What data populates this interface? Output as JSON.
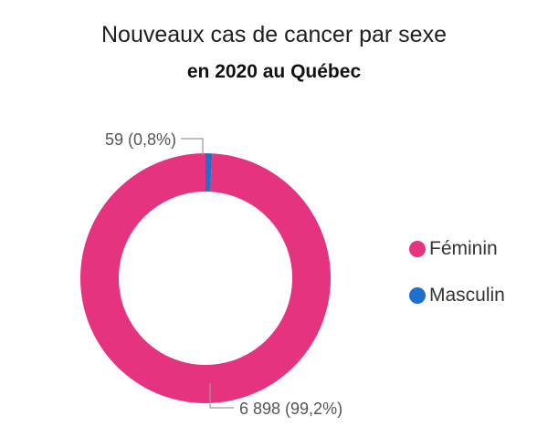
{
  "chart_data": {
    "type": "pie",
    "title": "Nouveaux cas de cancer par sexe",
    "subtitle": "en 2020 au Québec",
    "donut": true,
    "legend_position": "right",
    "slices": [
      {
        "label": "Féminin",
        "value": 6898,
        "percent": 99.2,
        "color": "#e6337f",
        "data_label": "6 898 (99,2%)"
      },
      {
        "label": "Masculin",
        "value": 59,
        "percent": 0.8,
        "color": "#1f6fcf",
        "data_label": "59 (0,8%)"
      }
    ]
  }
}
